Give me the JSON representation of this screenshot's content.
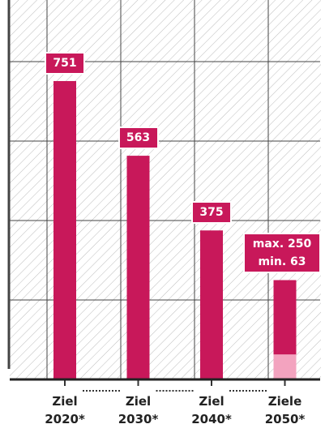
{
  "chart_data": {
    "type": "bar",
    "categories": [
      "Ziel\n2020*",
      "Ziel\n2030*",
      "Ziel\n2040*",
      "Ziele\n2050*"
    ],
    "series": [
      {
        "color": "#c8185a",
        "values": [
          751,
          563,
          375,
          250
        ],
        "value_labels": [
          "751",
          "563",
          "375",
          "max. 250"
        ]
      },
      {
        "color": "#f3a3bf",
        "values": [
          null,
          null,
          null,
          63
        ],
        "value_labels": [
          null,
          null,
          null,
          "min. 63"
        ]
      }
    ],
    "ylim": [
      0,
      955
    ],
    "yticks": [
      0,
      200,
      400,
      600,
      800
    ],
    "grid": true
  }
}
